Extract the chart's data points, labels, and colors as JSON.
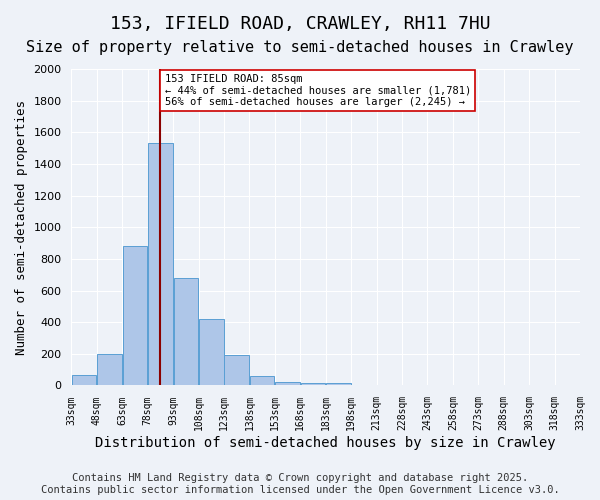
{
  "title": "153, IFIELD ROAD, CRAWLEY, RH11 7HU",
  "subtitle": "Size of property relative to semi-detached houses in Crawley",
  "xlabel": "Distribution of semi-detached houses by size in Crawley",
  "ylabel": "Number of semi-detached properties",
  "bin_edges": [
    33,
    48,
    63,
    78,
    93,
    108,
    123,
    138,
    153,
    168,
    183,
    198,
    213,
    228,
    243,
    258,
    273,
    288,
    303,
    318,
    333
  ],
  "bin_labels": [
    "33sqm",
    "48sqm",
    "63sqm",
    "78sqm",
    "93sqm",
    "108sqm",
    "123sqm",
    "138sqm",
    "153sqm",
    "168sqm",
    "183sqm",
    "198sqm",
    "213sqm",
    "228sqm",
    "243sqm",
    "258sqm",
    "273sqm",
    "288sqm",
    "303sqm",
    "318sqm",
    "333sqm"
  ],
  "counts": [
    65,
    200,
    880,
    1530,
    680,
    420,
    195,
    60,
    25,
    18,
    15,
    0,
    0,
    0,
    0,
    0,
    0,
    0,
    0,
    0
  ],
  "bar_color": "#aec6e8",
  "bar_edge_color": "#5a9fd4",
  "property_size": 85,
  "property_line_color": "#8b0000",
  "annotation_text": "153 IFIELD ROAD: 85sqm\n← 44% of semi-detached houses are smaller (1,781)\n56% of semi-detached houses are larger (2,245) →",
  "annotation_box_color": "#ffffff",
  "annotation_box_edge": "#cc0000",
  "ylim": [
    0,
    2000
  ],
  "yticks": [
    0,
    200,
    400,
    600,
    800,
    1000,
    1200,
    1400,
    1600,
    1800,
    2000
  ],
  "background_color": "#eef2f8",
  "grid_color": "#ffffff",
  "footer": "Contains HM Land Registry data © Crown copyright and database right 2025.\nContains public sector information licensed under the Open Government Licence v3.0.",
  "title_fontsize": 13,
  "subtitle_fontsize": 11,
  "xlabel_fontsize": 10,
  "ylabel_fontsize": 9,
  "footer_fontsize": 7.5
}
